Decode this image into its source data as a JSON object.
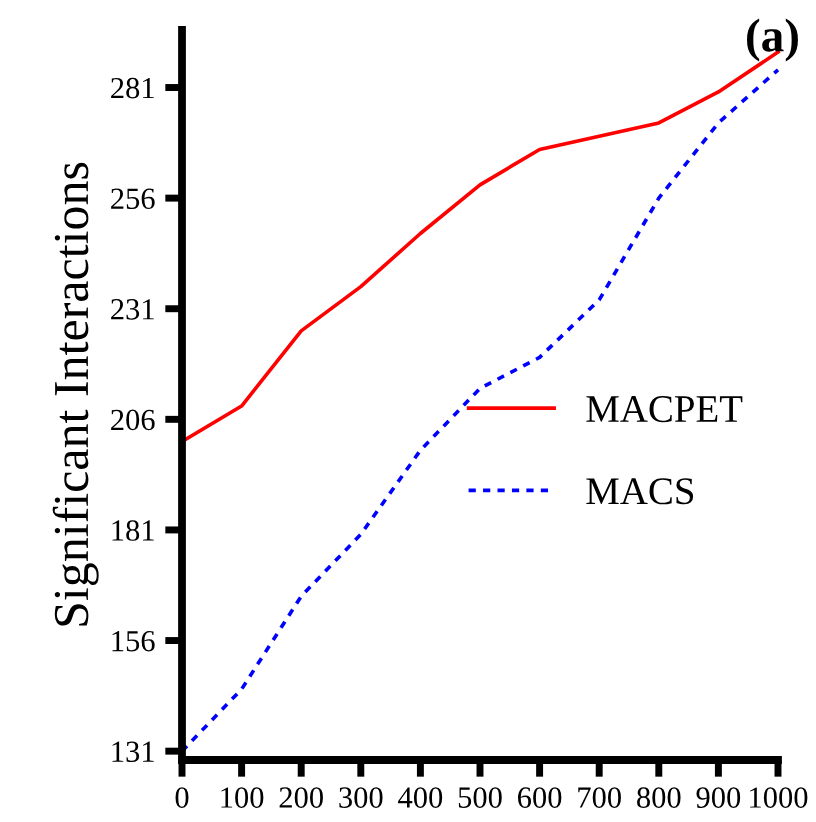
{
  "chart_data": {
    "type": "line",
    "ylabel": "Significant Interactions",
    "annotations": [
      "(a)"
    ],
    "x": [
      0,
      100,
      200,
      300,
      400,
      500,
      600,
      700,
      800,
      900,
      1000
    ],
    "series": [
      {
        "name": "MACPET",
        "color": "#ff0000",
        "line_style": "solid",
        "values": [
          201,
          209,
          226,
          236,
          248,
          259,
          267,
          270,
          273,
          280,
          289
        ]
      },
      {
        "name": "MACS",
        "color": "#0000ff",
        "line_style": "dotted",
        "values": [
          131,
          145,
          166,
          180,
          199,
          213,
          220,
          233,
          256,
          273,
          285
        ]
      }
    ],
    "xlim": [
      0,
      1000
    ],
    "ylim": [
      129,
      294
    ],
    "xticks": [
      0,
      100,
      200,
      300,
      400,
      500,
      600,
      700,
      800,
      900,
      1000
    ],
    "yticks": [
      131,
      156,
      181,
      206,
      231,
      256,
      281
    ],
    "grid": false,
    "legend": "right",
    "marker": "none"
  }
}
